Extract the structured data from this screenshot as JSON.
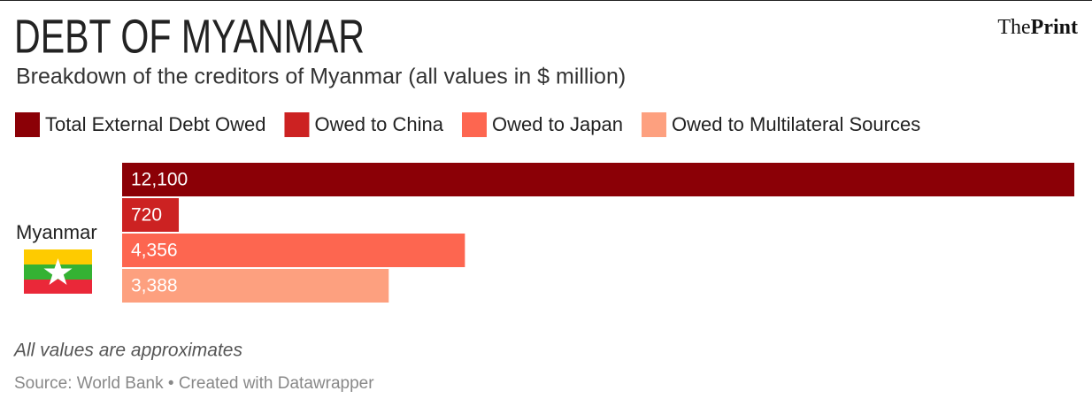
{
  "chart_data": {
    "type": "bar",
    "orientation": "horizontal",
    "title": "DEBT OF MYANMAR",
    "subtitle": "Breakdown of the creditors of Myanmar (all values in $ million)",
    "logo": [
      "The",
      "Print"
    ],
    "categories": [
      "Myanmar"
    ],
    "series": [
      {
        "name": "Total External Debt Owed",
        "color": "#8b0006",
        "values": [
          12100
        ],
        "value_labels": [
          "12,100"
        ]
      },
      {
        "name": "Owed to China",
        "color": "#cc2222",
        "values": [
          720
        ]
      },
      {
        "name": "Owed to Japan",
        "color": "#fd6650",
        "values": [
          4356
        ],
        "value_labels": [
          "4,356"
        ]
      },
      {
        "name": "Owed to Multilateral Sources",
        "color": "#fda07f",
        "values": [
          3388
        ],
        "value_labels": [
          "3,388"
        ]
      }
    ],
    "legend": "top-left",
    "note": "All values are approximates",
    "source": "Source: World Bank • Created with Datawrapper"
  }
}
